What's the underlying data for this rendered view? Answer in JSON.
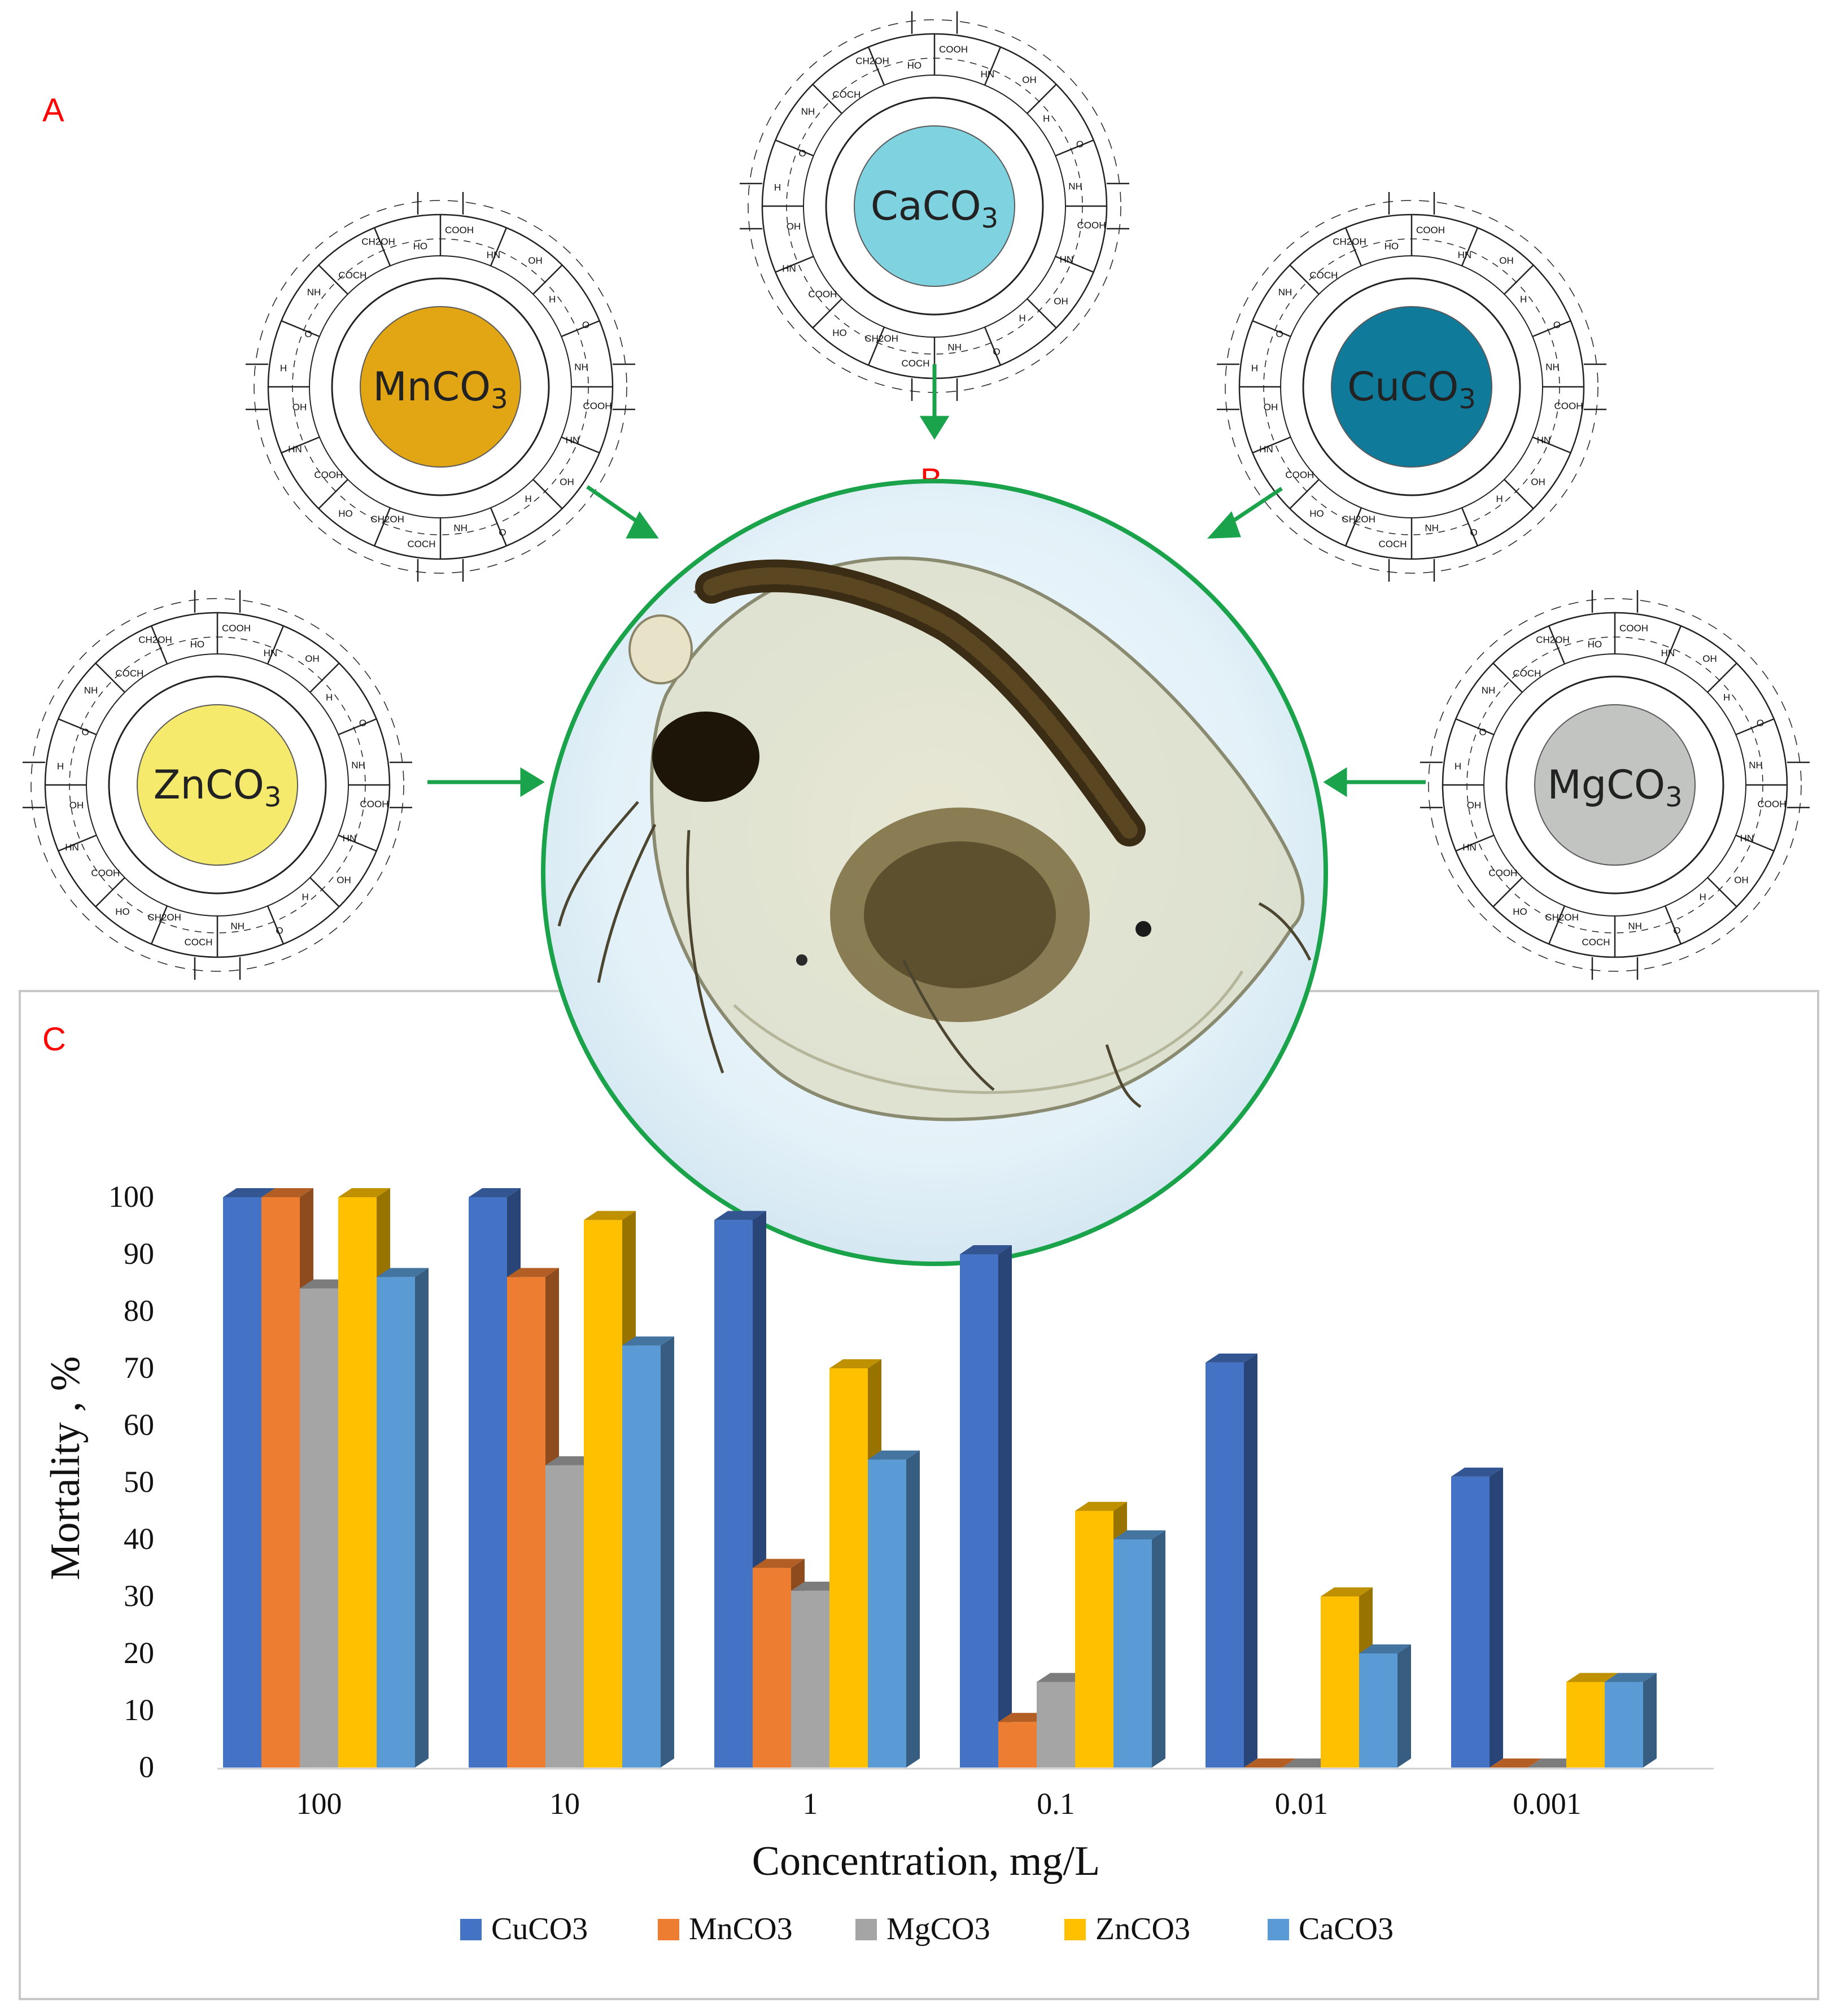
{
  "panel_labels": {
    "a": "A",
    "b": "B",
    "c": "C"
  },
  "nanoparticles": [
    {
      "formula": "CaCO",
      "sub": "3",
      "color": "#7fd3e0",
      "icon": "chitosan-shell-icon"
    },
    {
      "formula": "MnCO",
      "sub": "3",
      "color": "#e2a514",
      "icon": "chitosan-shell-icon"
    },
    {
      "formula": "CuCO",
      "sub": "3",
      "color": "#0f7a9a",
      "icon": "chitosan-shell-icon"
    },
    {
      "formula": "ZnCO",
      "sub": "3",
      "color": "#f5ea6b",
      "icon": "chitosan-shell-icon"
    },
    {
      "formula": "MgCO",
      "sub": "3",
      "color": "#c2c4c2",
      "icon": "chitosan-shell-icon"
    }
  ],
  "chem_labels": [
    "COOH",
    "HN",
    "OH",
    "H",
    "O",
    "NH",
    "COCH",
    "CH2OH",
    "HO"
  ],
  "organism": {
    "icon": "daphnia-magna-icon",
    "ring_color": "#1aa34a"
  },
  "chart_data": {
    "type": "bar",
    "style": "3d-clustered",
    "title": "",
    "xlabel": "Concentration, mg/L",
    "ylabel": "Mortality , %",
    "ylim": [
      0,
      100
    ],
    "yticks": [
      0,
      10,
      20,
      30,
      40,
      50,
      60,
      70,
      80,
      90,
      100
    ],
    "grid": false,
    "legend_position": "bottom",
    "categories": [
      "100",
      "10",
      "1",
      "0.1",
      "0.01",
      "0.001"
    ],
    "series": [
      {
        "name": "CuCO3",
        "color": "#4472c4",
        "values": [
          100,
          100,
          96,
          90,
          71,
          51
        ]
      },
      {
        "name": "MnCO3",
        "color": "#ed7d31",
        "values": [
          100,
          86,
          35,
          8,
          0,
          0
        ]
      },
      {
        "name": "MgCO3",
        "color": "#a5a5a5",
        "values": [
          84,
          53,
          31,
          15,
          0,
          0
        ]
      },
      {
        "name": "ZnCO3",
        "color": "#ffc000",
        "values": [
          100,
          96,
          70,
          45,
          30,
          15
        ]
      },
      {
        "name": "CaCO3",
        "color": "#5b9bd5",
        "values": [
          86,
          74,
          54,
          40,
          20,
          15
        ]
      }
    ]
  }
}
